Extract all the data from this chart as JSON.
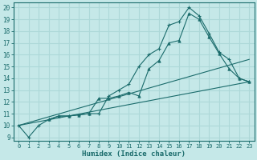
{
  "background_color": "#c5e8e8",
  "grid_color": "#add8d8",
  "line_color": "#1a6b6b",
  "xlabel": "Humidex (Indice chaleur)",
  "xlim": [
    -0.5,
    23.5
  ],
  "ylim": [
    8.7,
    20.4
  ],
  "xticks": [
    0,
    1,
    2,
    3,
    4,
    5,
    6,
    7,
    8,
    9,
    10,
    11,
    12,
    13,
    14,
    15,
    16,
    17,
    18,
    19,
    20,
    21,
    22,
    23
  ],
  "yticks": [
    9,
    10,
    11,
    12,
    13,
    14,
    15,
    16,
    17,
    18,
    19,
    20
  ],
  "series": [
    {
      "x": [
        0,
        1,
        2,
        3,
        4,
        5,
        6,
        7,
        8,
        9,
        10,
        11,
        12,
        13,
        14,
        15,
        16,
        17,
        18,
        19,
        20,
        21,
        22,
        23
      ],
      "y": [
        10.0,
        9.0,
        10.0,
        10.5,
        10.8,
        10.8,
        10.9,
        11.0,
        11.0,
        12.5,
        13.0,
        13.5,
        15.0,
        16.0,
        16.5,
        18.5,
        18.8,
        20.0,
        19.3,
        17.8,
        16.2,
        15.6,
        14.0,
        13.7
      ],
      "marker": "+"
    },
    {
      "x": [
        3,
        4,
        5,
        6,
        7,
        8,
        9,
        10,
        11,
        12,
        13,
        14,
        15,
        16,
        17,
        18,
        19,
        20,
        21,
        22,
        23
      ],
      "y": [
        10.5,
        10.8,
        10.8,
        10.9,
        11.0,
        12.3,
        12.3,
        12.5,
        12.8,
        12.5,
        14.8,
        15.5,
        17.0,
        17.2,
        19.5,
        19.0,
        17.5,
        16.1,
        14.8,
        14.0,
        13.7
      ],
      "marker": "^"
    },
    {
      "x": [
        0,
        23
      ],
      "y": [
        10.0,
        15.6
      ],
      "marker": null
    },
    {
      "x": [
        0,
        23
      ],
      "y": [
        10.0,
        13.7
      ],
      "marker": null
    }
  ]
}
